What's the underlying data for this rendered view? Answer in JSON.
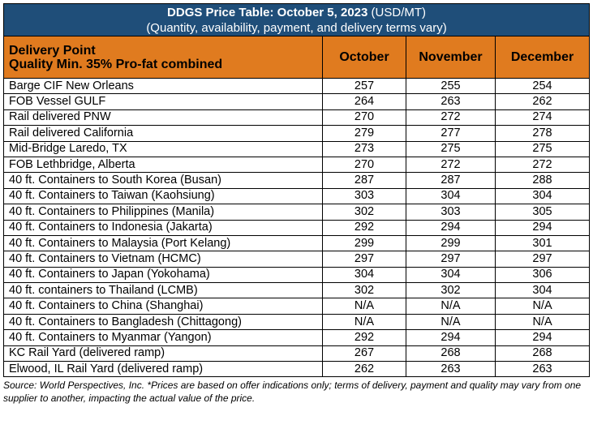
{
  "title": {
    "bold": "DDGS Price Table: October 5, 2023",
    "unit": " (USD/MT)",
    "subtitle": "(Quantity, availability, payment, and delivery terms vary)"
  },
  "header": {
    "delivery_point": "Delivery Point",
    "quality": "Quality Min. 35% Pro-fat combined",
    "months": [
      "October",
      "November",
      "December"
    ]
  },
  "rows": [
    {
      "location": "Barge CIF New Orleans",
      "values": [
        "257",
        "255",
        "254"
      ]
    },
    {
      "location": "FOB Vessel GULF",
      "values": [
        "264",
        "263",
        "262"
      ]
    },
    {
      "location": "Rail delivered PNW",
      "values": [
        "270",
        "272",
        "274"
      ]
    },
    {
      "location": "Rail delivered California",
      "values": [
        "279",
        "277",
        "278"
      ]
    },
    {
      "location": "Mid-Bridge Laredo, TX",
      "values": [
        "273",
        "275",
        "275"
      ]
    },
    {
      "location": "FOB Lethbridge, Alberta",
      "values": [
        "270",
        "272",
        "272"
      ]
    },
    {
      "location": "40 ft. Containers to South Korea (Busan)",
      "values": [
        "287",
        "287",
        "288"
      ]
    },
    {
      "location": "40 ft. Containers to Taiwan (Kaohsiung)",
      "values": [
        "303",
        "304",
        "304"
      ]
    },
    {
      "location": "40 ft. Containers to Philippines (Manila)",
      "values": [
        "302",
        "303",
        "305"
      ]
    },
    {
      "location": "40 ft. Containers to Indonesia (Jakarta)",
      "values": [
        "292",
        "294",
        "294"
      ]
    },
    {
      "location": "40 ft. Containers to Malaysia (Port Kelang)",
      "values": [
        "299",
        "299",
        "301"
      ]
    },
    {
      "location": "40 ft. Containers to Vietnam (HCMC)",
      "values": [
        "297",
        "297",
        "297"
      ]
    },
    {
      "location": "40 ft. Containers to Japan (Yokohama)",
      "values": [
        "304",
        "304",
        "306"
      ]
    },
    {
      "location": "40 ft. containers to Thailand (LCMB)",
      "values": [
        "302",
        "302",
        "304"
      ]
    },
    {
      "location": "40 ft. Containers to China (Shanghai)",
      "values": [
        "N/A",
        "N/A",
        "N/A"
      ]
    },
    {
      "location": "40 ft. Containers to Bangladesh (Chittagong)",
      "values": [
        "N/A",
        "N/A",
        "N/A"
      ]
    },
    {
      "location": "40 ft. Containers to Myanmar (Yangon)",
      "values": [
        "292",
        "294",
        "294"
      ]
    },
    {
      "location": "KC Rail Yard (delivered ramp)",
      "values": [
        "267",
        "268",
        "268"
      ]
    },
    {
      "location": "Elwood, IL Rail Yard (delivered ramp)",
      "values": [
        "262",
        "263",
        "263"
      ]
    }
  ],
  "source_note": "Source: World Perspectives, Inc. *Prices are based on offer indications only; terms of delivery, payment and quality may vary from one supplier to another, impacting the actual value of the price.",
  "colors": {
    "title_bg": "#1f4e79",
    "header_bg": "#e07b1f"
  }
}
